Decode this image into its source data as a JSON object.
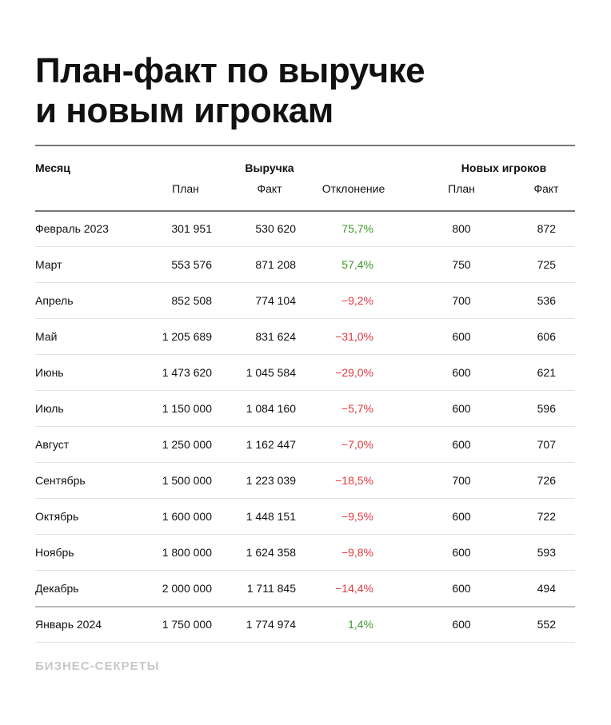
{
  "header": {
    "title_lines": [
      "План-факт по выручке",
      "и новым игрокам"
    ]
  },
  "table": {
    "group_headers": {
      "month": "Месяц",
      "revenue": "Выручка",
      "players": "Новых игроков"
    },
    "sub_headers": [
      "План",
      "Факт",
      "Отклонение",
      "План",
      "Факт"
    ],
    "rows": [
      [
        "Февраль 2023",
        "301 951",
        "530 620",
        "75,7%",
        "800",
        "872"
      ],
      [
        "Март",
        "553 576",
        "871 208",
        "57,4%",
        "750",
        "725"
      ],
      [
        "Апрель",
        "852 508",
        "774 104",
        "−9,2%",
        "700",
        "536"
      ],
      [
        "Май",
        "1 205 689",
        "831 624",
        "−31,0%",
        "600",
        "606"
      ],
      [
        "Июнь",
        "1 473 620",
        "1 045 584",
        "−29,0%",
        "600",
        "621"
      ],
      [
        "Июль",
        "1 150 000",
        "1 084 160",
        "−5,7%",
        "600",
        "596"
      ],
      [
        "Август",
        "1 250 000",
        "1 162 447",
        "−7,0%",
        "600",
        "707"
      ],
      [
        "Сентябрь",
        "1 500 000",
        "1 223 039",
        "−18,5%",
        "700",
        "726"
      ],
      [
        "Октябрь",
        "1 600 000",
        "1 448 151",
        "−9,5%",
        "600",
        "722"
      ],
      [
        "Ноябрь",
        "1 800 000",
        "1 624 358",
        "−9,8%",
        "600",
        "593"
      ],
      [
        "Декабрь",
        "2 000 000",
        "1 711 845",
        "−14,4%",
        "600",
        "494"
      ],
      [
        "Январь 2024",
        "1 750 000",
        "1 774 974",
        "1,4%",
        "600",
        "552"
      ]
    ]
  },
  "footer": {
    "brand": "БИЗНЕС-СЕКРЕТЫ"
  }
}
